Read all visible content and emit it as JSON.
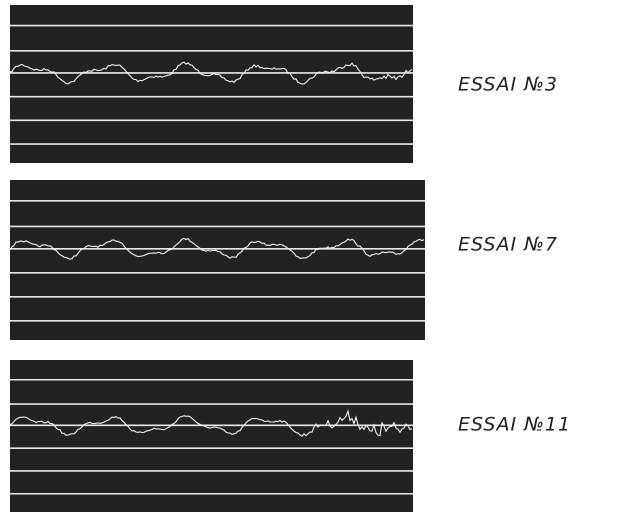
{
  "panels": [
    {
      "label": "ESSAI №3"
    },
    {
      "label": "ESSAI №7"
    },
    {
      "label": "ESSAI №11"
    }
  ]
}
